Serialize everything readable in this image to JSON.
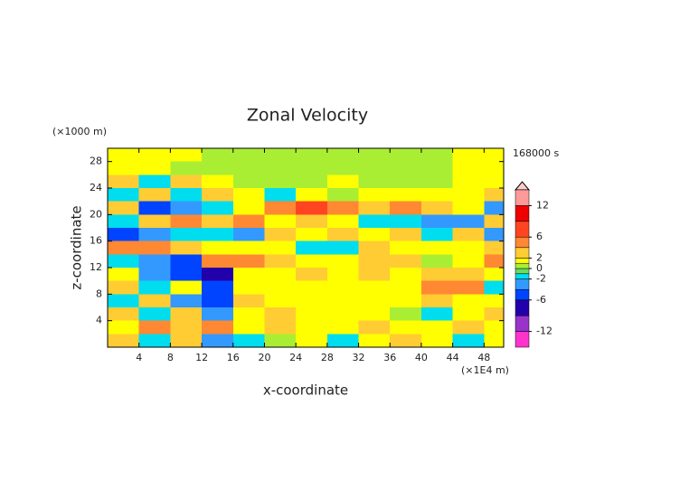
{
  "chart_data": {
    "type": "heatmap",
    "title": "Zonal Velocity",
    "time_label": "168000 s",
    "x_label": "x-coordinate",
    "y_label": "z-coordinate",
    "x_unit": "(×1E4 m)",
    "y_unit": "(×1000 m)",
    "xlim": [
      0,
      50.5
    ],
    "ylim": [
      0,
      30
    ],
    "xticks": [
      4,
      8,
      12,
      16,
      20,
      24,
      28,
      32,
      36,
      40,
      44,
      48
    ],
    "yticks": [
      4,
      8,
      12,
      16,
      20,
      24,
      28
    ],
    "xbins": [
      0,
      4,
      8,
      12,
      16,
      20,
      24,
      28,
      32,
      36,
      40,
      44,
      48,
      52
    ],
    "ybins": [
      0,
      2,
      4,
      6,
      8,
      10,
      12,
      14,
      16,
      18,
      20,
      22,
      24,
      26,
      28,
      30
    ],
    "values": [
      [
        3,
        -1.5,
        3,
        -3,
        -1.5,
        0.5,
        1.5,
        -1.5,
        1.5,
        3,
        1.5,
        -1.5,
        1.5
      ],
      [
        1.5,
        5,
        3,
        5,
        1.5,
        3,
        1.5,
        1.5,
        3,
        1.5,
        1.5,
        3,
        1.5
      ],
      [
        3,
        -1.5,
        3,
        -3,
        1.5,
        3,
        1.5,
        1.5,
        1.5,
        0.5,
        -1.5,
        1.5,
        3
      ],
      [
        -1.5,
        3,
        -3,
        -5,
        3,
        1.5,
        1.5,
        1.5,
        1.5,
        1.5,
        3,
        1.5,
        1.5
      ],
      [
        3,
        -1.5,
        1.5,
        -5,
        1.5,
        1.5,
        1.5,
        1.5,
        1.5,
        1.5,
        5,
        5,
        -1.5
      ],
      [
        1.5,
        -3,
        -5,
        -7,
        1.5,
        1.5,
        3,
        1.5,
        3,
        1.5,
        3,
        3,
        1.5
      ],
      [
        -1.5,
        -3,
        -5,
        5,
        5,
        3,
        1.5,
        1.5,
        3,
        3,
        0.5,
        1.5,
        5
      ],
      [
        5,
        5,
        3,
        1.5,
        1.5,
        1.5,
        -1.5,
        -1.5,
        3,
        1.5,
        1.5,
        1.5,
        3
      ],
      [
        -5,
        -3,
        -1.5,
        -1.5,
        -3,
        3,
        1.5,
        3,
        1.5,
        3,
        -1.5,
        3,
        -3
      ],
      [
        -1.5,
        3,
        5,
        3,
        5,
        1.5,
        3,
        1.5,
        -1.5,
        -1.5,
        -3,
        -3,
        3
      ],
      [
        3,
        -5,
        -3,
        -1.5,
        1.5,
        5,
        7,
        5,
        3,
        5,
        3,
        1.5,
        -3
      ],
      [
        -1.5,
        3,
        -1.5,
        3,
        1.5,
        -1.5,
        1.5,
        0.5,
        1.5,
        1.5,
        1.5,
        1.5,
        3
      ],
      [
        3,
        -1.5,
        3,
        1.5,
        0.5,
        0.5,
        0.5,
        1.5,
        0.5,
        0.5,
        0.5,
        1.5,
        1.5
      ],
      [
        1.5,
        1.5,
        0.5,
        0.5,
        0.5,
        0.5,
        0.5,
        0.5,
        0.5,
        0.5,
        0.5,
        1.5,
        1.5
      ],
      [
        1.5,
        1.5,
        1.5,
        0.5,
        0.5,
        0.5,
        0.5,
        0.5,
        0.5,
        0.5,
        0.5,
        1.5,
        1.5
      ]
    ],
    "colorbar": {
      "levels": [
        -15,
        -12,
        -9,
        -6,
        -4,
        -2,
        -1,
        0,
        1,
        2,
        4,
        6,
        9,
        12,
        15
      ],
      "colors": [
        "#ff33cc",
        "#9933cc",
        "#2200aa",
        "#0044ff",
        "#3399ff",
        "#00ddee",
        "#66dd66",
        "#aaee33",
        "#ffff00",
        "#ffcc33",
        "#ff8833",
        "#ff4422",
        "#ee0000",
        "#ff9999"
      ],
      "ticks": [
        12,
        6,
        2,
        0,
        -2,
        -6,
        -12
      ]
    }
  }
}
